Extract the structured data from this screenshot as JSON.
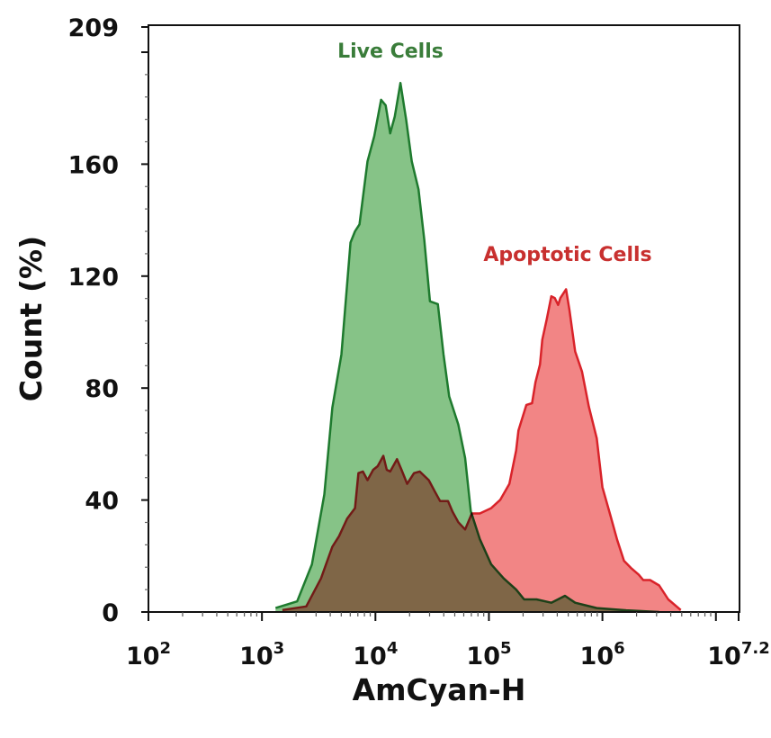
{
  "chart_data": {
    "type": "area",
    "title": "",
    "xlabel": "AmCyan-H",
    "ylabel": "Count (%)",
    "x_scale": "log10",
    "xlim_log10": [
      2,
      7.2
    ],
    "ylim": [
      0,
      209
    ],
    "x_ticks": [
      {
        "base": "10",
        "exp": "2",
        "log": 2
      },
      {
        "base": "10",
        "exp": "3",
        "log": 3
      },
      {
        "base": "10",
        "exp": "4",
        "log": 4
      },
      {
        "base": "10",
        "exp": "5",
        "log": 5
      },
      {
        "base": "10",
        "exp": "6",
        "log": 6
      },
      {
        "base": "10",
        "exp": "7.2",
        "log": 7.2
      }
    ],
    "y_ticks": [
      "0",
      "40",
      "80",
      "120",
      "160",
      "209"
    ],
    "grid": false,
    "legend": "none",
    "annotations": [
      {
        "text": "Live Cells",
        "color": "#3a7d3a"
      },
      {
        "text": "Apoptotic Cells",
        "color": "#c8302f"
      }
    ],
    "series": [
      {
        "name": "Apoptotic Cells",
        "line_color": "#d9232a",
        "fill_color": "#f28585",
        "log10_x": [
          3.18,
          3.39,
          3.52,
          3.62,
          3.68,
          3.75,
          3.82,
          3.85,
          3.89,
          3.93,
          3.98,
          4.02,
          4.07,
          4.1,
          4.13,
          4.19,
          4.23,
          4.28,
          4.34,
          4.39,
          4.47,
          4.52,
          4.57,
          4.64,
          4.68,
          4.73,
          4.79,
          4.85,
          4.92,
          5.02,
          5.1,
          5.18,
          5.24,
          5.26,
          5.33,
          5.38,
          5.41,
          5.45,
          5.47,
          5.51,
          5.55,
          5.58,
          5.61,
          5.63,
          5.68,
          5.71,
          5.76,
          5.82,
          5.88,
          5.95,
          6.0,
          6.07,
          6.13,
          6.19,
          6.25,
          6.32,
          6.36,
          6.42,
          6.5,
          6.58,
          6.69
        ],
        "y": [
          0.7,
          2.0,
          12.0,
          23.3,
          27.1,
          33.3,
          37.1,
          49.6,
          50.2,
          47.1,
          50.8,
          52.1,
          55.8,
          50.8,
          50.2,
          54.6,
          50.8,
          45.8,
          49.6,
          50.2,
          47.1,
          43.3,
          39.6,
          39.6,
          35.8,
          32.1,
          29.5,
          35.2,
          35.2,
          37.1,
          40.1,
          45.8,
          57.7,
          64.9,
          74.0,
          74.6,
          82.1,
          88.4,
          97.3,
          104.7,
          112.8,
          112.2,
          109.7,
          112.2,
          115.3,
          107.8,
          93.1,
          85.9,
          73.4,
          62.1,
          44.6,
          34.6,
          25.8,
          18.3,
          15.8,
          13.3,
          11.4,
          11.4,
          9.5,
          4.5,
          0.7
        ]
      },
      {
        "name": "Live Cells",
        "line_color": "#1e7a2e",
        "fill_color": "#86c387",
        "log10_x": [
          3.12,
          3.31,
          3.44,
          3.55,
          3.62,
          3.7,
          3.78,
          3.82,
          3.86,
          3.93,
          3.99,
          4.05,
          4.09,
          4.13,
          4.17,
          4.22,
          4.27,
          4.32,
          4.38,
          4.43,
          4.48,
          4.55,
          4.6,
          4.65,
          4.73,
          4.79,
          4.84,
          4.92,
          5.02,
          5.13,
          5.24,
          5.31,
          5.42,
          5.55,
          5.67,
          5.76,
          5.95,
          6.21,
          6.5
        ],
        "y": [
          1.4,
          3.8,
          17,
          42,
          73,
          92,
          132,
          136,
          138.5,
          161,
          170,
          183,
          181,
          171,
          177,
          189,
          176,
          161,
          151,
          133,
          111,
          110,
          92,
          77,
          67,
          55,
          36,
          26,
          17,
          12,
          8,
          4.5,
          4.5,
          3.3,
          5.8,
          3.3,
          1.4,
          0.6,
          0
        ]
      }
    ]
  }
}
